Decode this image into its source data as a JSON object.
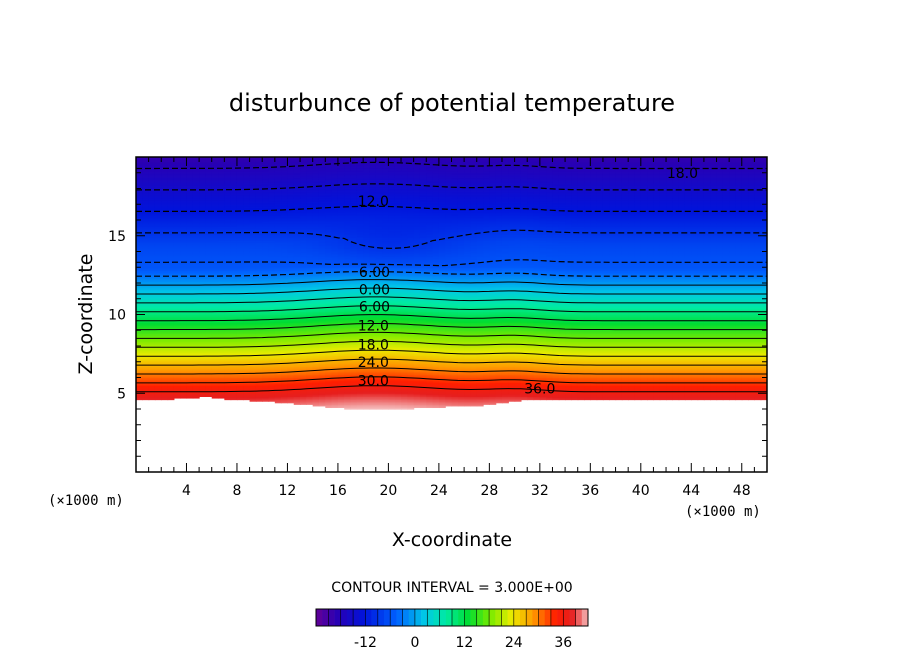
{
  "chart_data": {
    "type": "heatmap",
    "title": "disturbunce of potential temperature",
    "xlabel": "X-coordinate",
    "ylabel": "Z-coordinate",
    "x_unit": "(×1000 m)",
    "y_unit": "(×1000 m)",
    "xlim": [
      0,
      50
    ],
    "ylim": [
      0,
      20
    ],
    "x_ticks": [
      4,
      8,
      12,
      16,
      20,
      24,
      28,
      32,
      36,
      40,
      44,
      48
    ],
    "y_ticks": [
      5,
      10,
      15
    ],
    "contour_interval_text": "CONTOUR INTERVAL = 3.000E+00",
    "colorbar": {
      "min": -24,
      "max": 42,
      "ticks": [
        -12,
        0,
        12,
        24,
        36
      ]
    },
    "contour_labels": [
      {
        "text": "18.0",
        "x": 43.3,
        "z": 19.0
      },
      {
        "text": "12.0",
        "x": 18.8,
        "z": 17.2
      },
      {
        "text": "6.00",
        "x": 18.9,
        "z": 12.7
      },
      {
        "text": "0.00",
        "x": 18.9,
        "z": 11.6
      },
      {
        "text": "6.00",
        "x": 18.9,
        "z": 10.5
      },
      {
        "text": "12.0",
        "x": 18.8,
        "z": 9.3
      },
      {
        "text": "18.0",
        "x": 18.8,
        "z": 8.1
      },
      {
        "text": "24.0",
        "x": 18.8,
        "z": 7.0
      },
      {
        "text": "30.0",
        "x": 18.8,
        "z": 5.8
      },
      {
        "text": "36.0",
        "x": 32.0,
        "z": 5.3
      }
    ]
  }
}
